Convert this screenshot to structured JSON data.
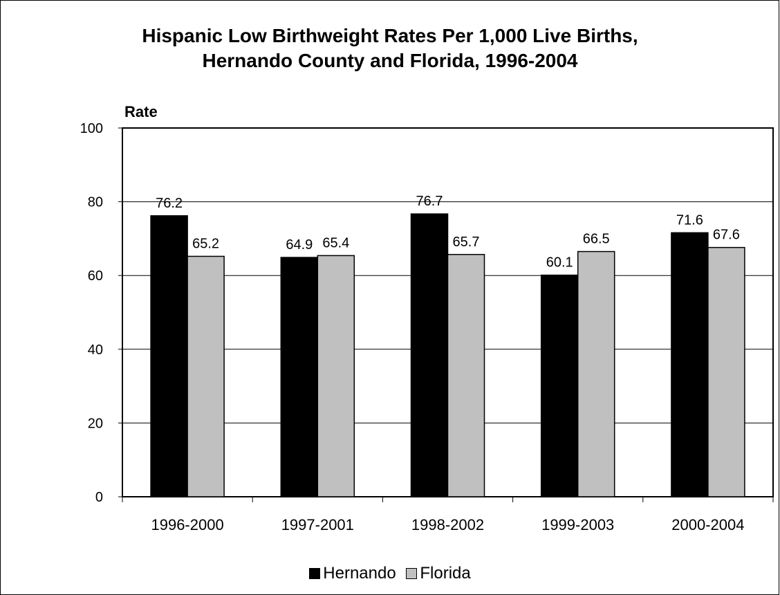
{
  "chart_data": {
    "type": "bar",
    "title": "Hispanic Low Birthweight Rates Per 1,000 Live Births,",
    "subtitle": "Hernando County and Florida, 1996-2004",
    "ylabel": "Rate",
    "xlabel": "",
    "ylim": [
      0,
      100
    ],
    "yticks": [
      0,
      20,
      40,
      60,
      80,
      100
    ],
    "categories": [
      "1996-2000",
      "1997-2001",
      "1998-2002",
      "1999-2003",
      "2000-2004"
    ],
    "series": [
      {
        "name": "Hernando",
        "color": "#000000",
        "values": [
          76.2,
          64.9,
          76.7,
          60.1,
          71.6
        ]
      },
      {
        "name": "Florida",
        "color": "#c0c0c0",
        "values": [
          65.2,
          65.4,
          65.7,
          66.5,
          67.6
        ]
      }
    ],
    "grid": true,
    "legend_position": "bottom"
  }
}
